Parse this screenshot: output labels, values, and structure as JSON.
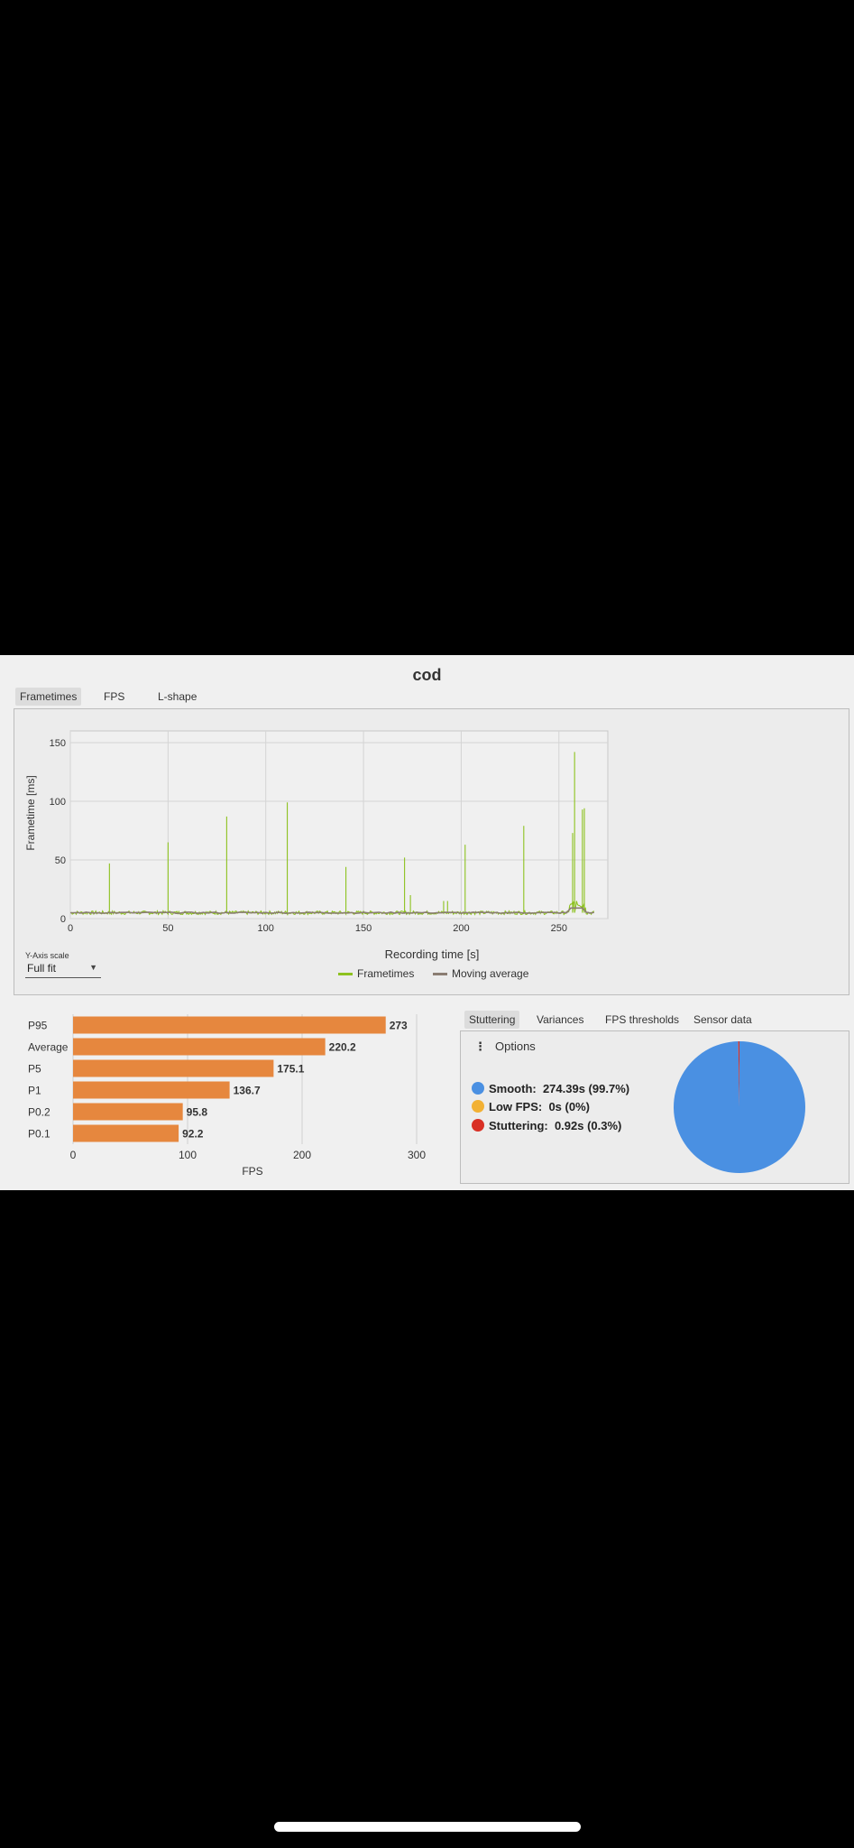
{
  "title": "cod",
  "tabs": [
    {
      "label": "Frametimes",
      "active": true
    },
    {
      "label": "FPS",
      "active": false
    },
    {
      "label": "L-shape",
      "active": false
    }
  ],
  "yaxis_scale": {
    "label": "Y-Axis scale",
    "value": "Full fit"
  },
  "bottom_tabs": [
    {
      "label": "Stuttering",
      "active": true
    },
    {
      "label": "Variances",
      "active": false
    },
    {
      "label": "FPS thresholds",
      "active": false
    },
    {
      "label": "Sensor data",
      "active": false
    }
  ],
  "options_label": "Options",
  "stats": [
    {
      "label": "Smooth:",
      "value": "274.39s (99.7%)",
      "color": "#4a90e2"
    },
    {
      "label": "Low FPS:",
      "value": "0s (0%)",
      "color": "#f2b134"
    },
    {
      "label": "Stuttering:",
      "value": "0.92s (0.3%)",
      "color": "#d93025"
    }
  ],
  "chart_data": [
    {
      "type": "line",
      "xlabel": "Recording time [s]",
      "ylabel": "Frametime [ms]",
      "xlim": [
        0,
        275
      ],
      "ylim": [
        0,
        160
      ],
      "xticks": [
        0,
        50,
        100,
        150,
        200,
        250
      ],
      "yticks": [
        0,
        50,
        100,
        150
      ],
      "grid": true,
      "legend": "bottom-center",
      "series": [
        {
          "name": "Frametimes",
          "color": "#8dc21f",
          "baseline": 5,
          "spikes": [
            {
              "x": 20,
              "y": 47
            },
            {
              "x": 50,
              "y": 65
            },
            {
              "x": 80,
              "y": 87
            },
            {
              "x": 111,
              "y": 99
            },
            {
              "x": 141,
              "y": 44
            },
            {
              "x": 171,
              "y": 52
            },
            {
              "x": 174,
              "y": 20
            },
            {
              "x": 191,
              "y": 15
            },
            {
              "x": 193,
              "y": 15
            },
            {
              "x": 202,
              "y": 63
            },
            {
              "x": 232,
              "y": 79
            },
            {
              "x": 257,
              "y": 73
            },
            {
              "x": 258,
              "y": 142
            },
            {
              "x": 262,
              "y": 93
            },
            {
              "x": 263,
              "y": 94
            }
          ]
        },
        {
          "name": "Moving average",
          "color": "#8a7d72",
          "baseline": 5
        }
      ]
    },
    {
      "type": "bar",
      "orientation": "horizontal",
      "xlabel": "FPS",
      "xlim": [
        0,
        300
      ],
      "xticks": [
        0,
        100,
        200,
        300
      ],
      "grid": true,
      "color": "#e6873e",
      "categories": [
        "P95",
        "Average",
        "P5",
        "P1",
        "P0.2",
        "P0.1"
      ],
      "values": [
        273,
        220.2,
        175.1,
        136.7,
        95.8,
        92.2
      ],
      "labels": [
        "273",
        "220.2",
        "175.1",
        "136.7",
        "95.8",
        "92.2"
      ]
    },
    {
      "type": "pie",
      "categories": [
        "Smooth",
        "Low FPS",
        "Stuttering"
      ],
      "values": [
        99.7,
        0,
        0.3
      ],
      "colors": [
        "#4a90e2",
        "#f2b134",
        "#d93025"
      ]
    }
  ]
}
